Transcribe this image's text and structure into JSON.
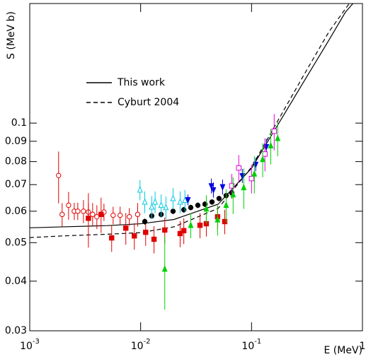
{
  "chart_data": {
    "type": "scatter",
    "x_label": "E (MeV)",
    "y_label": "S (MeV b)",
    "log_x": true,
    "log_y": true,
    "xlim": [
      0.001,
      1
    ],
    "ylim": [
      0.03,
      0.2
    ],
    "xticks": [
      {
        "value": 0.001,
        "label": "10",
        "exponent": "-3"
      },
      {
        "value": 0.01,
        "label": "10",
        "exponent": "-2"
      },
      {
        "value": 0.1,
        "label": "10",
        "exponent": "-1"
      },
      {
        "value": 1,
        "label": "1"
      }
    ],
    "yticks": [
      0.03,
      0.04,
      0.05,
      0.06,
      0.07,
      0.08,
      0.09,
      0.1
    ],
    "legend": "upper left",
    "series": [
      {
        "name": "This work",
        "style": "solid",
        "color": "#000000",
        "x": [
          0.001,
          0.002,
          0.005,
          0.01,
          0.02,
          0.05,
          0.1,
          0.2,
          0.3,
          0.5,
          0.7,
          0.82
        ],
        "values": [
          0.0545,
          0.0548,
          0.0552,
          0.0558,
          0.0572,
          0.0625,
          0.077,
          0.106,
          0.128,
          0.162,
          0.19,
          0.2
        ]
      },
      {
        "name": "Cyburt 2004",
        "style": "dashed",
        "color": "#000000",
        "x": [
          0.001,
          0.002,
          0.005,
          0.01,
          0.02,
          0.05,
          0.1,
          0.2,
          0.3,
          0.5,
          0.76
        ],
        "values": [
          0.0515,
          0.052,
          0.0525,
          0.053,
          0.0548,
          0.061,
          0.0775,
          0.109,
          0.133,
          0.17,
          0.2
        ]
      }
    ],
    "points": [
      {
        "marker": "circle-open",
        "color": "#e00000",
        "x": [
          0.00182,
          0.00196,
          0.00224,
          0.00252,
          0.00271,
          0.00305,
          0.00338,
          0.00369,
          0.00403,
          0.00467,
          0.00565,
          0.00653,
          0.00791,
          0.0094
        ],
        "values": [
          0.0738,
          0.0589,
          0.0621,
          0.06,
          0.06,
          0.06,
          0.0597,
          0.0589,
          0.0581,
          0.0597,
          0.0586,
          0.0586,
          0.0581,
          0.0589
        ],
        "errors": [
          0.011,
          0.004,
          0.005,
          0.003,
          0.003,
          0.004,
          0.003,
          0.004,
          0.004,
          0.003,
          0.003,
          0.003,
          0.003,
          0.004
        ]
      },
      {
        "marker": "square",
        "color": "#e00000",
        "x": [
          0.00338,
          0.0044,
          0.00548,
          0.00735,
          0.00877,
          0.0111,
          0.0132,
          0.0165,
          0.0227,
          0.0245,
          0.0343,
          0.0391,
          0.0494,
          0.0573
        ],
        "values": [
          0.0576,
          0.0589,
          0.0514,
          0.0544,
          0.052,
          0.0531,
          0.051,
          0.0538,
          0.0527,
          0.0536,
          0.0553,
          0.0558,
          0.0581,
          0.0565
        ],
        "errors": [
          0.009,
          0.006,
          0.004,
          0.005,
          0.004,
          0.004,
          0.004,
          0.004,
          0.004,
          0.004,
          0.004,
          0.004,
          0.004,
          0.004
        ]
      },
      {
        "marker": "circle",
        "color": "#000000",
        "x": [
          0.0109,
          0.0126,
          0.0153,
          0.0196,
          0.0245,
          0.0283,
          0.0328,
          0.038,
          0.044,
          0.0509,
          0.059,
          0.0664
        ],
        "values": [
          0.0565,
          0.0584,
          0.0589,
          0.06,
          0.0605,
          0.0613,
          0.0621,
          0.0625,
          0.0633,
          0.0646,
          0.0657,
          0.0667
        ],
        "errors": [
          0.001,
          0.001,
          0.001,
          0.001,
          0.001,
          0.001,
          0.001,
          0.001,
          0.001,
          0.001,
          0.001,
          0.001
        ]
      },
      {
        "marker": "triangle-open",
        "color": "#00c8e0",
        "x": [
          0.00986,
          0.0109,
          0.0126,
          0.0135,
          0.0153,
          0.0169,
          0.0196,
          0.0227,
          0.0251
        ],
        "values": [
          0.0679,
          0.0633,
          0.0615,
          0.0633,
          0.0621,
          0.0613,
          0.0646,
          0.0633,
          0.0639
        ],
        "errors": [
          0.004,
          0.004,
          0.004,
          0.004,
          0.004,
          0.004,
          0.004,
          0.004,
          0.004
        ]
      },
      {
        "marker": "triangle-down",
        "color": "#0000e0",
        "x": [
          0.0267,
          0.0434,
          0.0453,
          0.0548,
          0.0826,
          0.109,
          0.136
        ],
        "values": [
          0.0641,
          0.0695,
          0.0679,
          0.0691,
          0.0737,
          0.0787,
          0.0872
        ],
        "errors": [
          0.002,
          0.003,
          0.003,
          0.003,
          0.003,
          0.003,
          0.004
        ]
      },
      {
        "marker": "square-open",
        "color": "#e000e0",
        "x": [
          0.0664,
          0.0767,
          0.1,
          0.132,
          0.16
        ],
        "values": [
          0.0695,
          0.0771,
          0.0725,
          0.0836,
          0.0954
        ],
        "errors": [
          0.005,
          0.006,
          0.006,
          0.008,
          0.01
        ]
      },
      {
        "marker": "triangle",
        "color": "#00d000",
        "x": [
          0.0165,
          0.0283,
          0.0391,
          0.0494,
          0.059,
          0.0682,
          0.0851,
          0.106,
          0.126,
          0.149,
          0.172
        ],
        "values": [
          0.0429,
          0.0553,
          0.0608,
          0.0571,
          0.0621,
          0.066,
          0.0688,
          0.0745,
          0.081,
          0.0877,
          0.0915
        ],
        "errors": [
          0.009,
          0.004,
          0.005,
          0.005,
          0.006,
          0.007,
          0.008,
          0.008,
          0.008,
          0.009,
          0.009
        ]
      }
    ]
  }
}
